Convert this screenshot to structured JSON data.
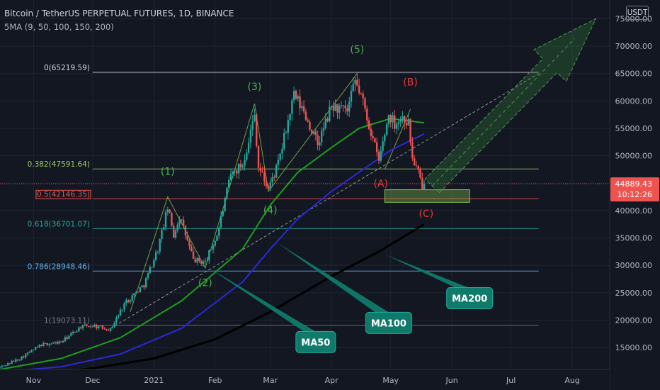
{
  "header": {
    "title": "Bitcoin / TetherUS PERPETUAL FUTURES, 1D, BINANCE",
    "indicator": "5MA (9, 50, 100, 150, 200)",
    "currency": "USDT"
  },
  "colors": {
    "background": "#131722",
    "up": "#26a69a",
    "down": "#ef5350",
    "ma50": "#1e9e1e",
    "ma100": "#2a2ad8",
    "ma200": "#000000",
    "wave_green": "#4caf50",
    "wave_red": "#e53935",
    "callout": "#0f7a6a"
  },
  "chart_data": {
    "type": "candlestick",
    "symbol": "BTCUSDT perpetual",
    "timeframe": "1D",
    "ylim": [
      11000,
      77000
    ],
    "y_ticks": [
      15000,
      20000,
      25000,
      30000,
      35000,
      40000,
      45000,
      50000,
      55000,
      60000,
      65000,
      70000,
      75000
    ],
    "y_tick_labels": [
      "15000.00",
      "20000.00",
      "25000.00",
      "30000.00",
      "35000.00",
      "40000.00",
      "45000.00",
      "50000.00",
      "55000.00",
      "60000.00",
      "65000.00",
      "70000.00",
      "75000.00"
    ],
    "x_range": [
      "2020-10-15",
      "2021-08-20"
    ],
    "x_ticks": [
      {
        "date": "2020-11-01",
        "label": "Nov"
      },
      {
        "date": "2020-12-01",
        "label": "Dec"
      },
      {
        "date": "2021-01-01",
        "label": "2021"
      },
      {
        "date": "2021-02-01",
        "label": "Feb"
      },
      {
        "date": "2021-03-01",
        "label": "Mar"
      },
      {
        "date": "2021-04-01",
        "label": "Apr"
      },
      {
        "date": "2021-05-01",
        "label": "May"
      },
      {
        "date": "2021-06-01",
        "label": "Jun"
      },
      {
        "date": "2021-07-01",
        "label": "Jul"
      },
      {
        "date": "2021-08-01",
        "label": "Aug"
      }
    ],
    "close_path": [
      [
        "2020-10-15",
        11400
      ],
      [
        "2020-10-25",
        13000
      ],
      [
        "2020-11-05",
        15500
      ],
      [
        "2020-11-15",
        16000
      ],
      [
        "2020-11-25",
        18800
      ],
      [
        "2020-12-01",
        19000
      ],
      [
        "2020-12-10",
        18300
      ],
      [
        "2020-12-17",
        23000
      ],
      [
        "2020-12-27",
        26500
      ],
      [
        "2021-01-03",
        33000
      ],
      [
        "2021-01-08",
        40500
      ],
      [
        "2021-01-11",
        35500
      ],
      [
        "2021-01-14",
        39000
      ],
      [
        "2021-01-21",
        31000
      ],
      [
        "2021-01-27",
        30500
      ],
      [
        "2021-02-02",
        35500
      ],
      [
        "2021-02-09",
        46500
      ],
      [
        "2021-02-15",
        48500
      ],
      [
        "2021-02-21",
        57500
      ],
      [
        "2021-02-23",
        48000
      ],
      [
        "2021-02-28",
        44000
      ],
      [
        "2021-03-05",
        48500
      ],
      [
        "2021-03-13",
        61000
      ],
      [
        "2021-03-18",
        58000
      ],
      [
        "2021-03-25",
        52000
      ],
      [
        "2021-04-01",
        59000
      ],
      [
        "2021-04-09",
        58000
      ],
      [
        "2021-04-13",
        63500
      ],
      [
        "2021-04-16",
        61000
      ],
      [
        "2021-04-22",
        53000
      ],
      [
        "2021-04-25",
        49000
      ],
      [
        "2021-04-30",
        57500
      ],
      [
        "2021-05-03",
        56000
      ],
      [
        "2021-05-07",
        57000
      ],
      [
        "2021-05-10",
        56000
      ],
      [
        "2021-05-12",
        49500
      ],
      [
        "2021-05-15",
        47000
      ],
      [
        "2021-05-17",
        43500
      ],
      [
        "2021-05-18",
        44889
      ]
    ],
    "moving_averages": [
      {
        "name": "MA50",
        "color": "#1e9e1e",
        "points": [
          [
            "2020-10-15",
            11000
          ],
          [
            "2020-11-15",
            13000
          ],
          [
            "2020-12-15",
            16800
          ],
          [
            "2021-01-15",
            23500
          ],
          [
            "2021-02-15",
            33000
          ],
          [
            "2021-03-01",
            41000
          ],
          [
            "2021-03-15",
            47000
          ],
          [
            "2021-04-01",
            51500
          ],
          [
            "2021-04-15",
            55000
          ],
          [
            "2021-05-01",
            56800
          ],
          [
            "2021-05-18",
            56000
          ]
        ]
      },
      {
        "name": "MA100",
        "color": "#2a2ad8",
        "points": [
          [
            "2020-10-15",
            10500
          ],
          [
            "2020-11-15",
            11500
          ],
          [
            "2020-12-15",
            13800
          ],
          [
            "2021-01-15",
            18500
          ],
          [
            "2021-02-15",
            27000
          ],
          [
            "2021-03-01",
            33000
          ],
          [
            "2021-03-15",
            38500
          ],
          [
            "2021-04-01",
            43500
          ],
          [
            "2021-04-15",
            47000
          ],
          [
            "2021-05-01",
            51000
          ],
          [
            "2021-05-18",
            54000
          ]
        ]
      },
      {
        "name": "MA200",
        "color": "#000000",
        "points": [
          [
            "2020-11-01",
            10000
          ],
          [
            "2020-12-01",
            11200
          ],
          [
            "2021-01-01",
            13000
          ],
          [
            "2021-02-01",
            16500
          ],
          [
            "2021-03-01",
            21500
          ],
          [
            "2021-04-01",
            28000
          ],
          [
            "2021-04-25",
            32500
          ],
          [
            "2021-05-18",
            37500
          ]
        ]
      }
    ],
    "fib_levels": [
      {
        "level": 0,
        "price": 65219.59,
        "label": "0(65219.59)",
        "color": "#d1d4dc"
      },
      {
        "level": 0.382,
        "price": 47591.64,
        "label": "0.382(47591.64)",
        "color": "#9ccc65"
      },
      {
        "level": 0.5,
        "price": 42146.35,
        "label": "0.5(42146.35)",
        "color": "#ef5350"
      },
      {
        "level": 0.618,
        "price": 36701.07,
        "label": "0.618(36701.07)",
        "color": "#26a69a"
      },
      {
        "level": 0.786,
        "price": 28948.46,
        "label": "0.786(28948.46)",
        "color": "#64b5f6"
      },
      {
        "level": 1,
        "price": 19073.11,
        "label": "1(19073.11)",
        "color": "#787b86"
      }
    ],
    "wave_labels": [
      {
        "text": "(1)",
        "date": "2021-01-08",
        "price": 46500,
        "color": "#4caf50"
      },
      {
        "text": "(2)",
        "date": "2021-01-27",
        "price": 26200,
        "color": "#4caf50"
      },
      {
        "text": "(3)",
        "date": "2021-02-21",
        "price": 62000,
        "color": "#4caf50"
      },
      {
        "text": "(4)",
        "date": "2021-03-01",
        "price": 39500,
        "color": "#4caf50"
      },
      {
        "text": "(5)",
        "date": "2021-04-14",
        "price": 68800,
        "color": "#4caf50"
      },
      {
        "text": "(A)",
        "date": "2021-04-26",
        "price": 44300,
        "color": "#e53935"
      },
      {
        "text": "(B)",
        "date": "2021-05-11",
        "price": 62800,
        "color": "#e53935"
      },
      {
        "text": "(C)",
        "date": "2021-05-19",
        "price": 38800,
        "color": "#e53935"
      }
    ],
    "callouts": [
      {
        "text": "MA50",
        "target": [
          "2021-01-29",
          29500
        ],
        "box": [
          "2021-03-24",
          16000
        ]
      },
      {
        "text": "MA100",
        "target": [
          "2021-03-05",
          34000
        ],
        "box": [
          "2021-04-30",
          19500
        ]
      },
      {
        "text": "MA200",
        "target": [
          "2021-04-28",
          32000
        ],
        "box": [
          "2021-06-10",
          24000
        ]
      }
    ],
    "target_zone": {
      "x": [
        "2021-04-28",
        "2021-06-10"
      ],
      "y": [
        41500,
        43800
      ]
    },
    "last_price": {
      "label": "44889.43",
      "countdown": "10:12:26",
      "value": 44889.43
    }
  }
}
